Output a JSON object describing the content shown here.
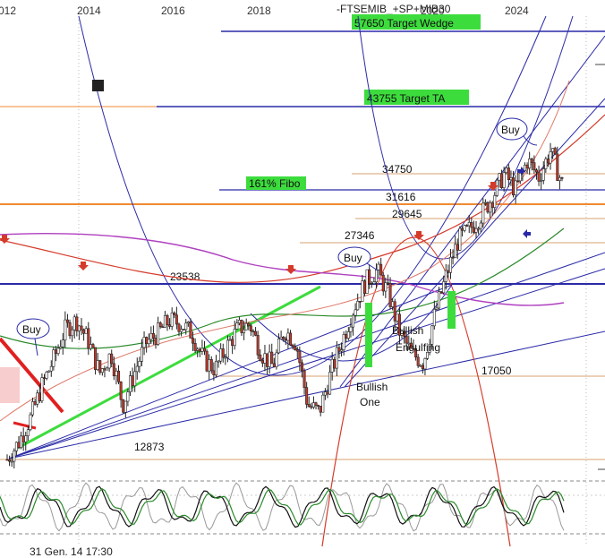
{
  "chart_data": {
    "type": "candlestick",
    "title": "-FTSEMIB_+SP+MIB30",
    "x_tick_labels": [
      "012",
      "2014",
      "2016",
      "2018",
      "2020",
      "2024"
    ],
    "status_text": "31 Gen. 14 17:30",
    "levels": [
      {
        "value": "57650 Target Wedge"
      },
      {
        "value": "43755 Target TA"
      },
      {
        "value": "34750"
      },
      {
        "value": "161% Fibo"
      },
      {
        "value": "31616"
      },
      {
        "value": "29645"
      },
      {
        "value": "27346"
      },
      {
        "value": "23538"
      },
      {
        "value": "17050"
      },
      {
        "value": "12873"
      }
    ],
    "annotations": [
      {
        "text": "Buy"
      },
      {
        "text": "Buy"
      },
      {
        "text": "Buy"
      },
      {
        "text": "Bullish"
      },
      {
        "text": "Engulfing"
      },
      {
        "text": "Bullish"
      },
      {
        "text": "One"
      }
    ],
    "price_series_approx": [
      12873,
      14200,
      16000,
      18500,
      20500,
      22800,
      23538,
      22000,
      19500,
      21000,
      17050,
      19500,
      21800,
      22500,
      23500,
      23300,
      22500,
      20500,
      19800,
      21500,
      22900,
      23200,
      21000,
      20000,
      22800,
      21800,
      17050,
      16500,
      19500,
      22000,
      24500,
      26500,
      27346,
      25500,
      22500,
      21000,
      20300,
      24000,
      27000,
      29645,
      30500,
      31616,
      33000,
      34750,
      33500,
      35800,
      34500,
      36500,
      34000
    ],
    "colors": {
      "candle_up": "#ffffff",
      "candle_down": "#c0392b",
      "target_line": "#2a2aa8",
      "fibo_box": "#3ddc3d",
      "orange_level": "#f08a30",
      "trend_green": "#3ddc3d",
      "ma_red": "#d43a2a",
      "ma_purple": "#b040c0",
      "ma_green": "#2a8a2a"
    }
  }
}
